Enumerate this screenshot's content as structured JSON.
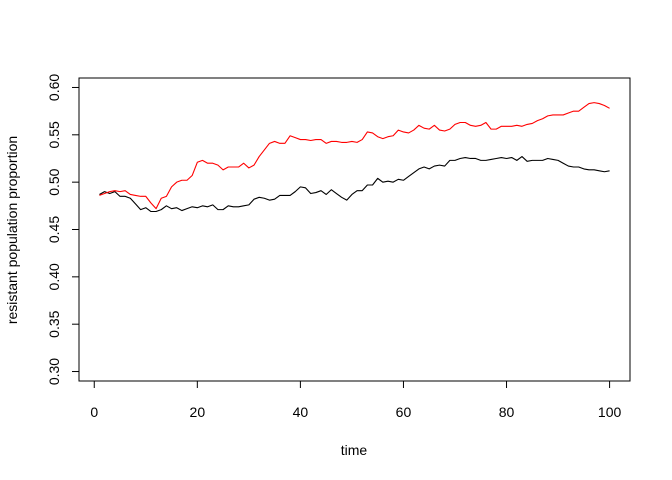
{
  "chart_data": {
    "type": "line",
    "title": "",
    "xlabel": "time",
    "ylabel": "resistant population proportion",
    "xlim": [
      1,
      100
    ],
    "ylim": [
      0.29,
      0.61
    ],
    "xticks": [
      0,
      20,
      40,
      60,
      80,
      100
    ],
    "xtick_labels": [
      "0",
      "20",
      "40",
      "60",
      "80",
      "100"
    ],
    "yticks": [
      0.3,
      0.35,
      0.4,
      0.45,
      0.5,
      0.55,
      0.6
    ],
    "ytick_labels": [
      "0.30",
      "0.35",
      "0.40",
      "0.45",
      "0.50",
      "0.55",
      "0.60"
    ],
    "grid": false,
    "legend": "none",
    "series": [
      {
        "color": "#000000",
        "x": [
          1,
          2,
          3,
          4,
          5,
          6,
          7,
          8,
          9,
          10,
          11,
          12,
          13,
          14,
          15,
          16,
          17,
          18,
          19,
          20,
          21,
          22,
          23,
          24,
          25,
          26,
          27,
          28,
          29,
          30,
          31,
          32,
          33,
          34,
          35,
          36,
          37,
          38,
          39,
          40,
          41,
          42,
          43,
          44,
          45,
          46,
          47,
          48,
          49,
          50,
          51,
          52,
          53,
          54,
          55,
          56,
          57,
          58,
          59,
          60,
          61,
          62,
          63,
          64,
          65,
          66,
          67,
          68,
          69,
          70,
          71,
          72,
          73,
          74,
          75,
          76,
          77,
          78,
          79,
          80,
          81,
          82,
          83,
          84,
          85,
          86,
          87,
          88,
          89,
          90,
          91,
          92,
          93,
          94,
          95,
          96,
          97,
          98,
          99,
          100
        ],
        "values": [
          0.487,
          0.49,
          0.488,
          0.49,
          0.485,
          0.485,
          0.483,
          0.477,
          0.471,
          0.473,
          0.469,
          0.469,
          0.471,
          0.475,
          0.472,
          0.473,
          0.47,
          0.472,
          0.474,
          0.473,
          0.475,
          0.474,
          0.476,
          0.471,
          0.471,
          0.475,
          0.474,
          0.474,
          0.475,
          0.476,
          0.482,
          0.484,
          0.483,
          0.481,
          0.482,
          0.486,
          0.486,
          0.486,
          0.49,
          0.495,
          0.494,
          0.488,
          0.489,
          0.491,
          0.487,
          0.492,
          0.488,
          0.484,
          0.481,
          0.487,
          0.491,
          0.491,
          0.497,
          0.497,
          0.504,
          0.5,
          0.501,
          0.5,
          0.503,
          0.502,
          0.506,
          0.51,
          0.514,
          0.516,
          0.514,
          0.517,
          0.518,
          0.517,
          0.523,
          0.523,
          0.525,
          0.526,
          0.525,
          0.525,
          0.523,
          0.523,
          0.524,
          0.525,
          0.526,
          0.525,
          0.526,
          0.523,
          0.527,
          0.522,
          0.523,
          0.523,
          0.523,
          0.525,
          0.524,
          0.523,
          0.52,
          0.517,
          0.516,
          0.516,
          0.514,
          0.513,
          0.513,
          0.512,
          0.511,
          0.512
        ]
      },
      {
        "color": "#ff0000",
        "x": [
          1,
          2,
          3,
          4,
          5,
          6,
          7,
          8,
          9,
          10,
          11,
          12,
          13,
          14,
          15,
          16,
          17,
          18,
          19,
          20,
          21,
          22,
          23,
          24,
          25,
          26,
          27,
          28,
          29,
          30,
          31,
          32,
          33,
          34,
          35,
          36,
          37,
          38,
          39,
          40,
          41,
          42,
          43,
          44,
          45,
          46,
          47,
          48,
          49,
          50,
          51,
          52,
          53,
          54,
          55,
          56,
          57,
          58,
          59,
          60,
          61,
          62,
          63,
          64,
          65,
          66,
          67,
          68,
          69,
          70,
          71,
          72,
          73,
          74,
          75,
          76,
          77,
          78,
          79,
          80,
          81,
          82,
          83,
          84,
          85,
          86,
          87,
          88,
          89,
          90,
          91,
          92,
          93,
          94,
          95,
          96,
          97,
          98,
          99,
          100
        ],
        "values": [
          0.486,
          0.488,
          0.49,
          0.491,
          0.49,
          0.491,
          0.487,
          0.486,
          0.485,
          0.485,
          0.478,
          0.472,
          0.483,
          0.485,
          0.495,
          0.5,
          0.502,
          0.502,
          0.507,
          0.521,
          0.523,
          0.52,
          0.52,
          0.518,
          0.513,
          0.516,
          0.516,
          0.516,
          0.52,
          0.515,
          0.518,
          0.527,
          0.534,
          0.541,
          0.543,
          0.541,
          0.541,
          0.549,
          0.547,
          0.545,
          0.545,
          0.544,
          0.545,
          0.545,
          0.541,
          0.543,
          0.543,
          0.542,
          0.542,
          0.543,
          0.542,
          0.545,
          0.553,
          0.552,
          0.548,
          0.546,
          0.548,
          0.549,
          0.555,
          0.553,
          0.552,
          0.555,
          0.56,
          0.557,
          0.556,
          0.56,
          0.555,
          0.554,
          0.556,
          0.561,
          0.563,
          0.563,
          0.56,
          0.559,
          0.56,
          0.563,
          0.556,
          0.556,
          0.559,
          0.559,
          0.559,
          0.56,
          0.559,
          0.561,
          0.562,
          0.565,
          0.567,
          0.57,
          0.571,
          0.571,
          0.571,
          0.573,
          0.575,
          0.575,
          0.579,
          0.583,
          0.584,
          0.583,
          0.581,
          0.578
        ]
      }
    ]
  }
}
